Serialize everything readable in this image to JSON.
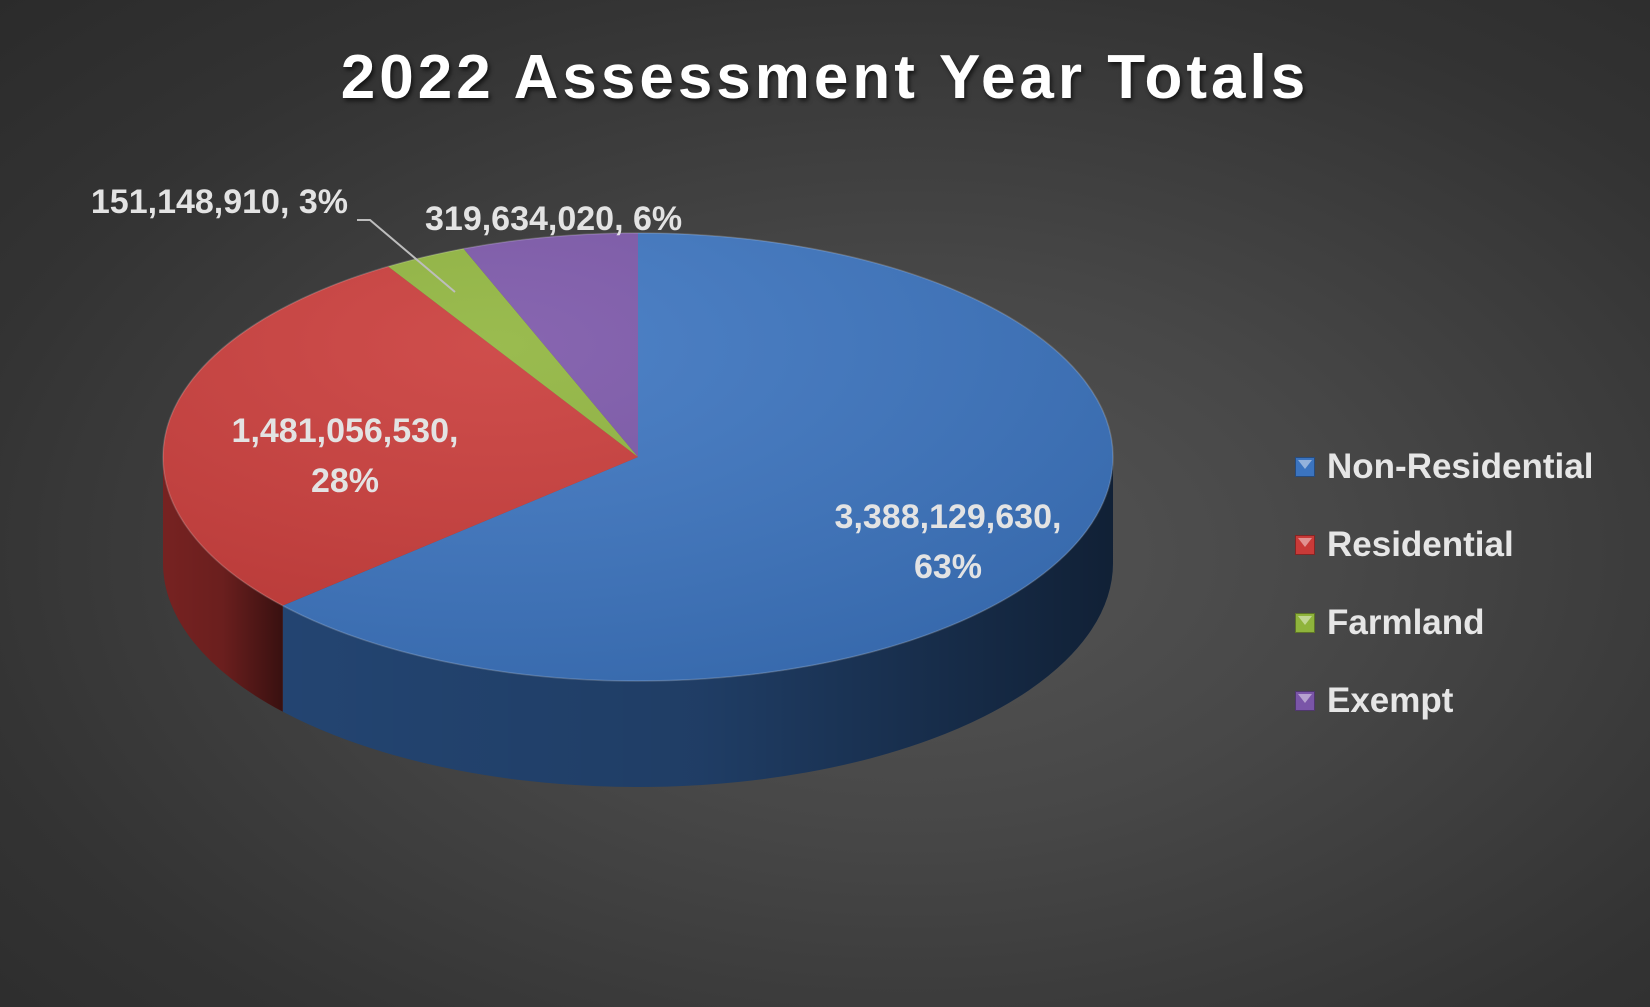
{
  "title": "2022 Assessment Year Totals",
  "chart_data": {
    "type": "pie",
    "title": "2022 Assessment Year Totals",
    "legend_position": "right",
    "slices": [
      {
        "name": "Non-Residential",
        "value": 3388129630,
        "percent": 63,
        "label_lines": [
          "3,388,129,630,",
          "63%"
        ],
        "color": "#3b74c0"
      },
      {
        "name": "Residential",
        "value": 1481056530,
        "percent": 28,
        "label_lines": [
          "1,481,056,530,",
          "28%"
        ],
        "color": "#c93a38"
      },
      {
        "name": "Farmland",
        "value": 151148910,
        "percent": 3,
        "label_lines": [
          "151,148,910, 3%"
        ],
        "color": "#8fb43c"
      },
      {
        "name": "Exempt",
        "value": 319634020,
        "percent": 6,
        "label_lines": [
          "319,634,020, 6%"
        ],
        "color": "#7a55a8"
      }
    ]
  }
}
